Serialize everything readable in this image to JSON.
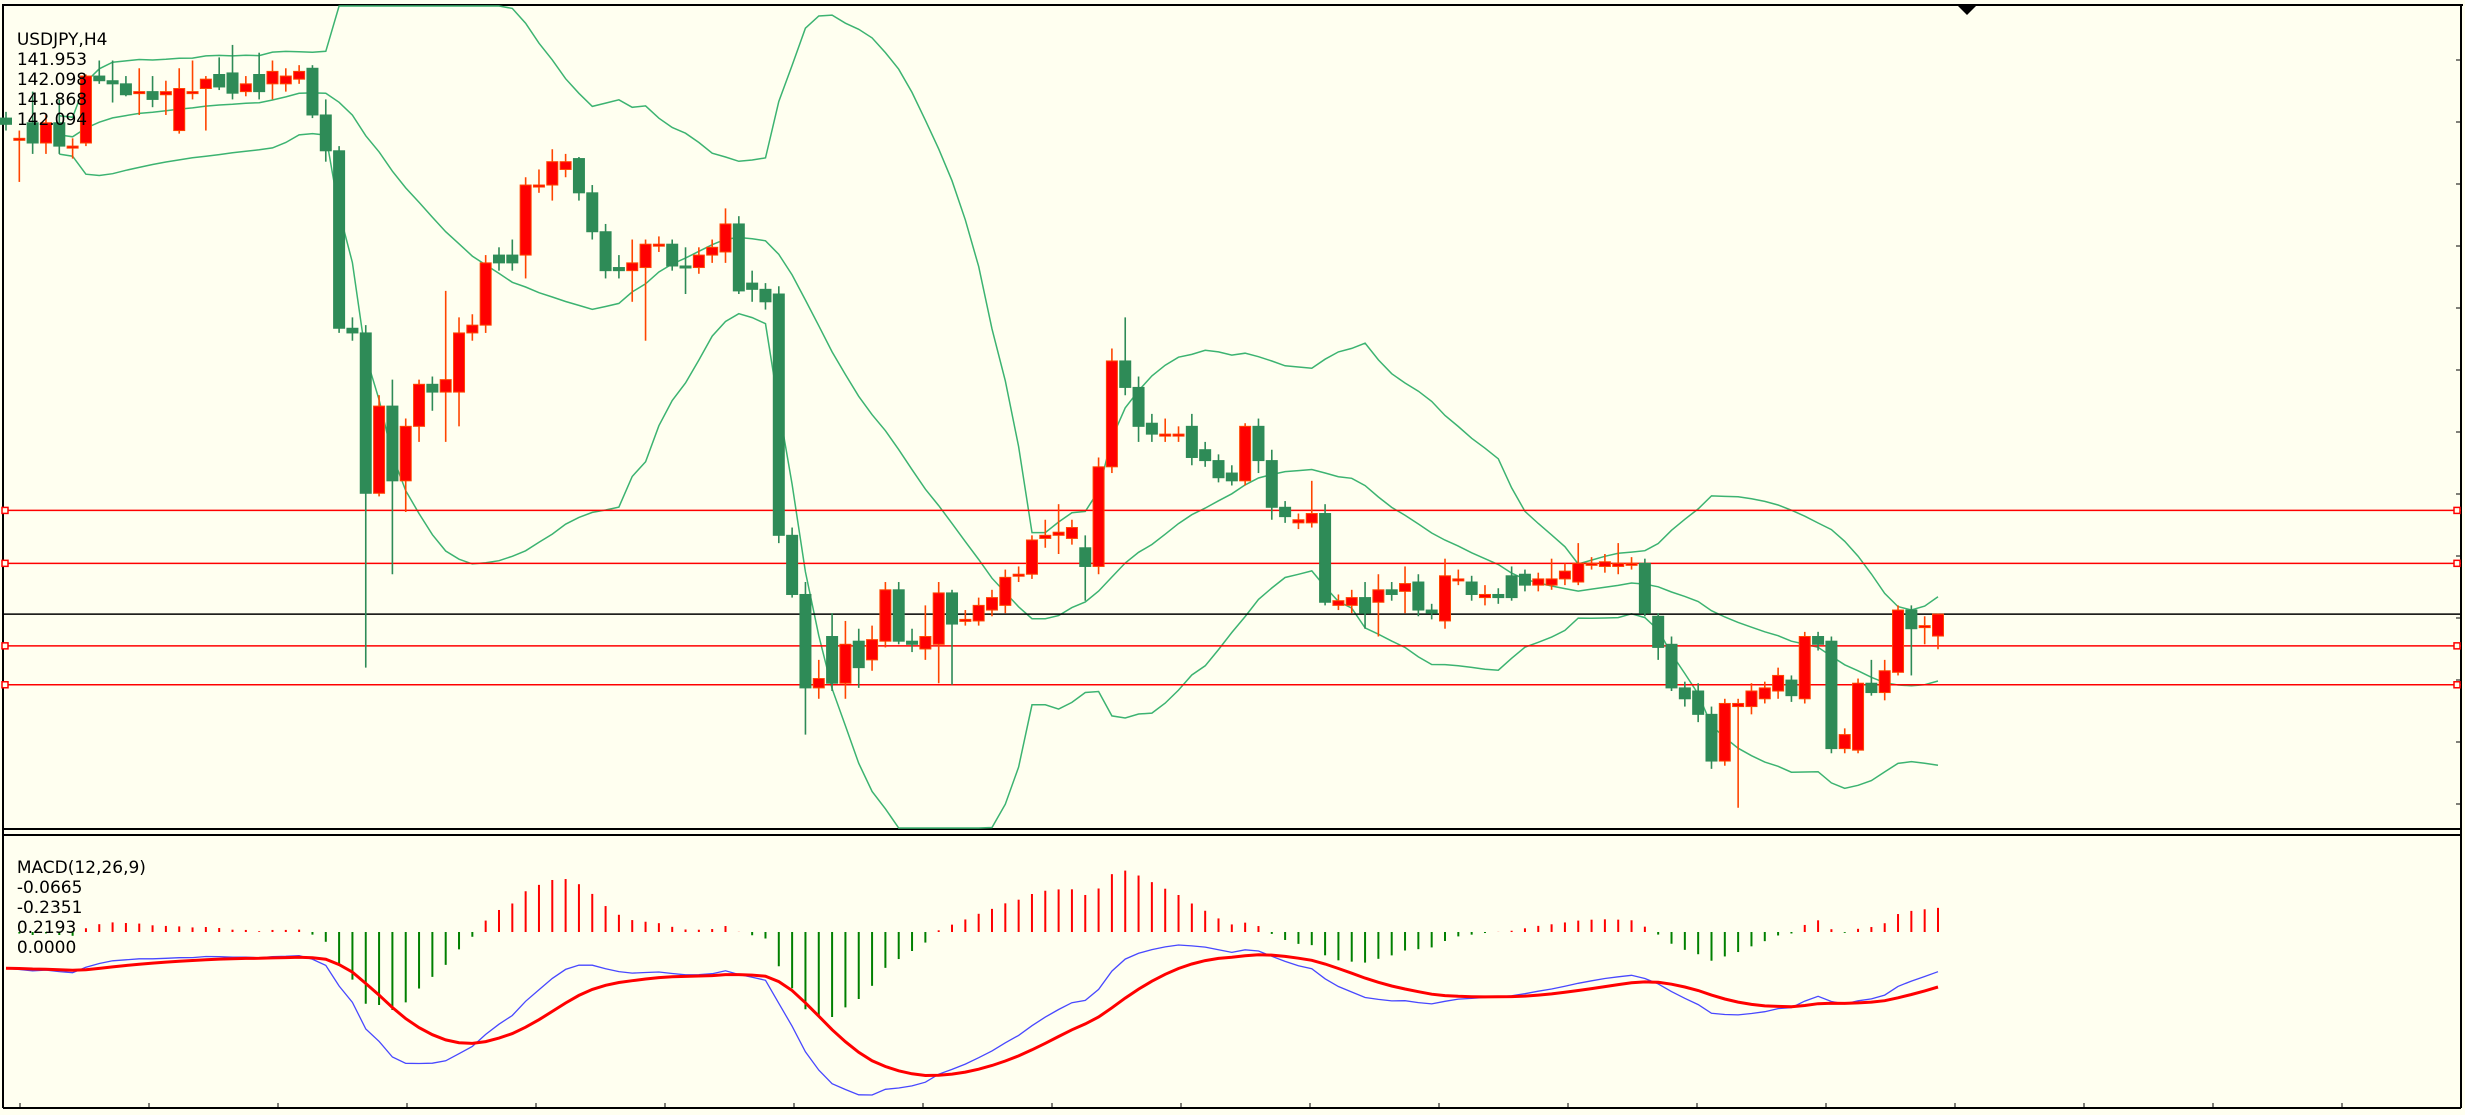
{
  "header": {
    "symbol": "USDJPY,H4",
    "open": "141.953",
    "high": "142.098",
    "low": "141.868",
    "close": "142.094"
  },
  "macd_label": {
    "name": "MACD(12,26,9)",
    "v1": "-0.0665",
    "v2": "-0.2351",
    "v3": "0.2193",
    "v4": "0.0000"
  },
  "colors": {
    "background": "#FFFFF0",
    "bull": "#FF0000",
    "bull_wick": "#FF4500",
    "bear": "#2E8B57",
    "bands": "#3CB371",
    "hline": "#FF0000",
    "bid": "#000000",
    "macd": "#4848FF",
    "signal": "#FF0000"
  },
  "chart_data": {
    "type": "candlestick",
    "symbol": "USDJPY",
    "timeframe": "H4",
    "ylim": [
      140.72,
      146.0
    ],
    "bid": 142.094,
    "hlines": [
      142.76,
      142.42,
      141.89,
      141.64
    ],
    "indicators": [
      "Bollinger Bands(20,2)",
      "MACD(12,26,9)"
    ],
    "candles_ohlc": [
      [
        145.28,
        145.32,
        145.2,
        145.24
      ],
      [
        145.15,
        145.2,
        144.87,
        145.15
      ],
      [
        145.25,
        145.45,
        145.05,
        145.12
      ],
      [
        145.12,
        145.3,
        145.05,
        145.25
      ],
      [
        145.25,
        145.4,
        145.05,
        145.1
      ],
      [
        145.1,
        145.15,
        145.02,
        145.1
      ],
      [
        145.12,
        145.56,
        145.1,
        145.55
      ],
      [
        145.55,
        145.65,
        145.5,
        145.52
      ],
      [
        145.52,
        145.65,
        145.38,
        145.5
      ],
      [
        145.5,
        145.55,
        145.42,
        145.43
      ],
      [
        145.45,
        145.6,
        145.3,
        145.45
      ],
      [
        145.45,
        145.55,
        145.35,
        145.4
      ],
      [
        145.43,
        145.52,
        145.3,
        145.45
      ],
      [
        145.2,
        145.6,
        145.18,
        145.47
      ],
      [
        145.45,
        145.65,
        145.4,
        145.45
      ],
      [
        145.47,
        145.55,
        145.2,
        145.53
      ],
      [
        145.56,
        145.67,
        145.46,
        145.48
      ],
      [
        145.57,
        145.75,
        145.4,
        145.44
      ],
      [
        145.45,
        145.55,
        145.42,
        145.5
      ],
      [
        145.56,
        145.7,
        145.4,
        145.45
      ],
      [
        145.5,
        145.65,
        145.4,
        145.58
      ],
      [
        145.5,
        145.6,
        145.45,
        145.55
      ],
      [
        145.53,
        145.62,
        145.5,
        145.58
      ],
      [
        145.6,
        145.62,
        145.28,
        145.3
      ],
      [
        145.3,
        145.4,
        145.0,
        145.07
      ],
      [
        145.07,
        145.1,
        143.9,
        143.93
      ],
      [
        143.93,
        144.0,
        143.85,
        143.9
      ],
      [
        143.9,
        143.95,
        141.75,
        142.87
      ],
      [
        142.87,
        143.5,
        142.85,
        143.43
      ],
      [
        143.43,
        143.6,
        142.35,
        142.95
      ],
      [
        142.95,
        143.35,
        142.75,
        143.3
      ],
      [
        143.3,
        143.6,
        143.2,
        143.57
      ],
      [
        143.57,
        143.62,
        143.4,
        143.52
      ],
      [
        143.52,
        144.17,
        143.2,
        143.6
      ],
      [
        143.52,
        144.0,
        143.3,
        143.9
      ],
      [
        143.9,
        144.02,
        143.85,
        143.95
      ],
      [
        143.95,
        144.4,
        143.9,
        144.35
      ],
      [
        144.4,
        144.45,
        144.3,
        144.35
      ],
      [
        144.4,
        144.5,
        144.3,
        144.35
      ],
      [
        144.4,
        144.9,
        144.25,
        144.85
      ],
      [
        144.85,
        144.95,
        144.8,
        144.85
      ],
      [
        144.85,
        145.08,
        144.75,
        145.0
      ],
      [
        144.95,
        145.05,
        144.9,
        145.0
      ],
      [
        145.02,
        145.03,
        144.75,
        144.8
      ],
      [
        144.8,
        144.85,
        144.5,
        144.55
      ],
      [
        144.55,
        144.6,
        144.25,
        144.3
      ],
      [
        144.32,
        144.4,
        144.25,
        144.3
      ],
      [
        144.3,
        144.5,
        144.1,
        144.35
      ],
      [
        144.32,
        144.5,
        143.85,
        144.47
      ],
      [
        144.47,
        144.52,
        144.42,
        144.47
      ],
      [
        144.47,
        144.5,
        144.3,
        144.33
      ],
      [
        144.33,
        144.45,
        144.15,
        144.32
      ],
      [
        144.32,
        144.45,
        144.28,
        144.4
      ],
      [
        144.4,
        144.5,
        144.35,
        144.45
      ],
      [
        144.42,
        144.7,
        144.35,
        144.6
      ],
      [
        144.6,
        144.65,
        144.15,
        144.17
      ],
      [
        144.22,
        144.3,
        144.1,
        144.18
      ],
      [
        144.18,
        144.22,
        144.05,
        144.1
      ],
      [
        144.15,
        144.2,
        142.55,
        142.6
      ],
      [
        142.6,
        142.65,
        142.2,
        142.22
      ],
      [
        142.22,
        142.3,
        141.32,
        141.62
      ],
      [
        141.62,
        141.8,
        141.55,
        141.68
      ],
      [
        141.95,
        142.1,
        141.6,
        141.65
      ],
      [
        141.65,
        142.05,
        141.55,
        141.9
      ],
      [
        141.92,
        142.0,
        141.62,
        141.75
      ],
      [
        141.8,
        142.02,
        141.73,
        141.93
      ],
      [
        141.92,
        142.3,
        141.88,
        142.25
      ],
      [
        142.25,
        142.3,
        141.9,
        141.92
      ],
      [
        141.92,
        142.0,
        141.85,
        141.9
      ],
      [
        141.87,
        142.15,
        141.8,
        141.95
      ],
      [
        141.9,
        142.3,
        141.65,
        142.23
      ],
      [
        142.23,
        142.25,
        141.64,
        142.03
      ],
      [
        142.06,
        142.12,
        142.02,
        142.06
      ],
      [
        142.05,
        142.2,
        142.02,
        142.15
      ],
      [
        142.12,
        142.25,
        142.08,
        142.2
      ],
      [
        142.15,
        142.38,
        142.1,
        142.33
      ],
      [
        142.35,
        142.4,
        142.3,
        142.35
      ],
      [
        142.35,
        142.6,
        142.32,
        142.57
      ],
      [
        142.58,
        142.7,
        142.52,
        142.6
      ],
      [
        142.6,
        142.8,
        142.48,
        142.62
      ],
      [
        142.58,
        142.7,
        142.54,
        142.65
      ],
      [
        142.52,
        142.6,
        142.18,
        142.4
      ],
      [
        142.4,
        143.1,
        142.35,
        143.04
      ],
      [
        143.04,
        143.8,
        143.0,
        143.72
      ],
      [
        143.72,
        144.0,
        143.5,
        143.55
      ],
      [
        143.55,
        143.62,
        143.2,
        143.3
      ],
      [
        143.32,
        143.38,
        143.2,
        143.25
      ],
      [
        143.25,
        143.35,
        143.2,
        143.25
      ],
      [
        143.25,
        143.3,
        143.2,
        143.25
      ],
      [
        143.3,
        143.38,
        143.05,
        143.1
      ],
      [
        143.15,
        143.2,
        143.04,
        143.08
      ],
      [
        143.08,
        143.12,
        142.94,
        142.97
      ],
      [
        143.0,
        143.05,
        142.92,
        142.95
      ],
      [
        142.95,
        143.32,
        142.92,
        143.3
      ],
      [
        143.3,
        143.35,
        143.0,
        143.08
      ],
      [
        143.08,
        143.15,
        142.7,
        142.78
      ],
      [
        142.78,
        142.82,
        142.68,
        142.72
      ],
      [
        142.68,
        142.74,
        142.64,
        142.7
      ],
      [
        142.68,
        142.95,
        142.65,
        142.74
      ],
      [
        142.74,
        142.8,
        142.15,
        142.17
      ],
      [
        142.15,
        142.22,
        142.12,
        142.18
      ],
      [
        142.15,
        142.25,
        142.1,
        142.2
      ],
      [
        142.2,
        142.3,
        142.0,
        142.1
      ],
      [
        142.17,
        142.35,
        141.95,
        142.25
      ],
      [
        142.25,
        142.3,
        142.18,
        142.22
      ],
      [
        142.24,
        142.4,
        142.1,
        142.29
      ],
      [
        142.3,
        142.35,
        142.08,
        142.12
      ],
      [
        142.12,
        142.16,
        142.06,
        142.1
      ],
      [
        142.05,
        142.45,
        142.0,
        142.34
      ],
      [
        142.32,
        142.38,
        142.28,
        142.32
      ],
      [
        142.3,
        142.34,
        142.18,
        142.22
      ],
      [
        142.2,
        142.28,
        142.15,
        142.22
      ],
      [
        142.22,
        142.26,
        142.16,
        142.2
      ],
      [
        142.34,
        142.4,
        142.18,
        142.2
      ],
      [
        142.35,
        142.38,
        142.24,
        142.28
      ],
      [
        142.28,
        142.36,
        142.24,
        142.32
      ],
      [
        142.28,
        142.45,
        142.25,
        142.32
      ],
      [
        142.32,
        142.42,
        142.28,
        142.37
      ],
      [
        142.3,
        142.55,
        142.28,
        142.42
      ],
      [
        142.42,
        142.46,
        142.38,
        142.42
      ],
      [
        142.4,
        142.48,
        142.36,
        142.43
      ],
      [
        142.4,
        142.55,
        142.35,
        142.42
      ],
      [
        142.42,
        142.46,
        142.38,
        142.42
      ],
      [
        142.42,
        142.45,
        142.08,
        142.1
      ],
      [
        142.08,
        142.1,
        141.8,
        141.88
      ],
      [
        141.9,
        141.95,
        141.6,
        141.62
      ],
      [
        141.62,
        141.66,
        141.5,
        141.55
      ],
      [
        141.6,
        141.65,
        141.4,
        141.45
      ],
      [
        141.45,
        141.5,
        141.1,
        141.15
      ],
      [
        141.15,
        141.55,
        141.12,
        141.52
      ],
      [
        141.5,
        141.55,
        140.85,
        141.52
      ],
      [
        141.5,
        141.65,
        141.45,
        141.6
      ],
      [
        141.55,
        141.66,
        141.52,
        141.62
      ],
      [
        141.6,
        141.75,
        141.55,
        141.7
      ],
      [
        141.67,
        141.7,
        141.53,
        141.57
      ],
      [
        141.55,
        141.98,
        141.52,
        141.95
      ],
      [
        141.95,
        141.98,
        141.86,
        141.9
      ],
      [
        141.92,
        141.95,
        141.2,
        141.23
      ],
      [
        141.23,
        141.36,
        141.2,
        141.32
      ],
      [
        141.22,
        141.68,
        141.2,
        141.65
      ],
      [
        141.65,
        141.8,
        141.57,
        141.59
      ],
      [
        141.59,
        141.8,
        141.54,
        141.73
      ],
      [
        141.72,
        142.15,
        141.7,
        142.12
      ],
      [
        142.12,
        142.15,
        141.7,
        142.0
      ],
      [
        142.02,
        142.08,
        141.9,
        142.02
      ],
      [
        141.953,
        142.098,
        141.868,
        142.094
      ]
    ]
  }
}
